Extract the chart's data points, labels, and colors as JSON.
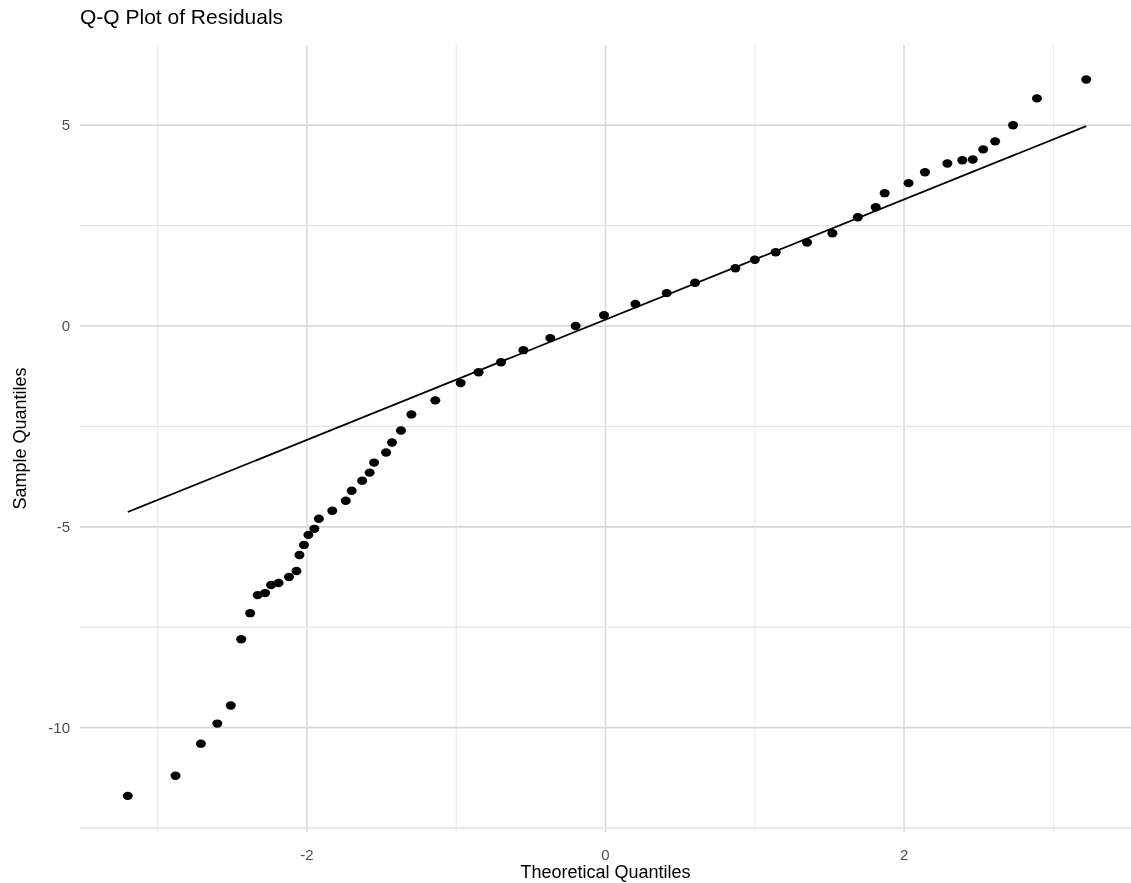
{
  "chart_data": {
    "type": "scatter",
    "title": "Q-Q Plot of Residuals",
    "xlabel": "Theoretical Quantiles",
    "ylabel": "Sample Quantiles",
    "xlim": [
      -3.52,
      3.52
    ],
    "ylim": [
      -12.6,
      7.0
    ],
    "xticks": [
      {
        "value": -3,
        "label": null
      },
      -2,
      {
        "value": -1,
        "label": null
      },
      0,
      {
        "value": 1,
        "label": null
      },
      2,
      {
        "value": 3,
        "label": null
      }
    ],
    "yticks": [
      {
        "value": -12.5,
        "label": null
      },
      -10,
      {
        "value": -7.5,
        "label": null
      },
      -5,
      {
        "value": -2.5,
        "label": null
      },
      0,
      {
        "value": 2.5,
        "label": null
      },
      5
    ],
    "grid": true,
    "marker": "circle",
    "series": [
      {
        "color": "#000000",
        "x": [
          -3.2,
          -2.88,
          -2.71,
          -2.6,
          -2.51,
          -2.44,
          -2.38,
          -2.33,
          -2.28,
          -2.24,
          -2.19,
          -2.12,
          -2.07,
          -2.05,
          -2.02,
          -1.99,
          -1.95,
          -1.92,
          -1.83,
          -1.74,
          -1.7,
          -1.63,
          -1.58,
          -1.55,
          -1.47,
          -1.43,
          -1.37,
          -1.3,
          -1.14,
          -0.97,
          -0.85,
          -0.7,
          -0.55,
          -0.37,
          -0.2,
          -0.01,
          0.2,
          0.41,
          0.6,
          0.87,
          1.0,
          1.14,
          1.35,
          1.52,
          1.69,
          1.81,
          1.87,
          2.03,
          2.14,
          2.29,
          2.39,
          2.46,
          2.53,
          2.61,
          2.73,
          2.89,
          3.22
        ],
        "values": [
          -11.7,
          -11.2,
          -10.4,
          -9.9,
          -9.45,
          -7.8,
          -7.15,
          -6.7,
          -6.65,
          -6.45,
          -6.4,
          -6.25,
          -6.1,
          -5.7,
          -5.45,
          -5.2,
          -5.05,
          -4.8,
          -4.6,
          -4.35,
          -4.1,
          -3.85,
          -3.65,
          -3.4,
          -3.15,
          -2.9,
          -2.6,
          -2.2,
          -1.85,
          -1.42,
          -1.15,
          -0.9,
          -0.6,
          -0.3,
          0.0,
          0.27,
          0.55,
          0.82,
          1.08,
          1.44,
          1.65,
          1.84,
          2.08,
          2.31,
          2.71,
          2.96,
          3.31,
          3.56,
          3.83,
          4.05,
          4.13,
          4.15,
          4.4,
          4.6,
          5.0,
          5.67,
          6.14
        ]
      },
      {
        "type": "line",
        "marker": "none",
        "color": "#000000",
        "line_style": "solid",
        "x": [
          -3.2,
          3.22
        ],
        "values": [
          -4.63,
          4.98
        ]
      }
    ]
  }
}
